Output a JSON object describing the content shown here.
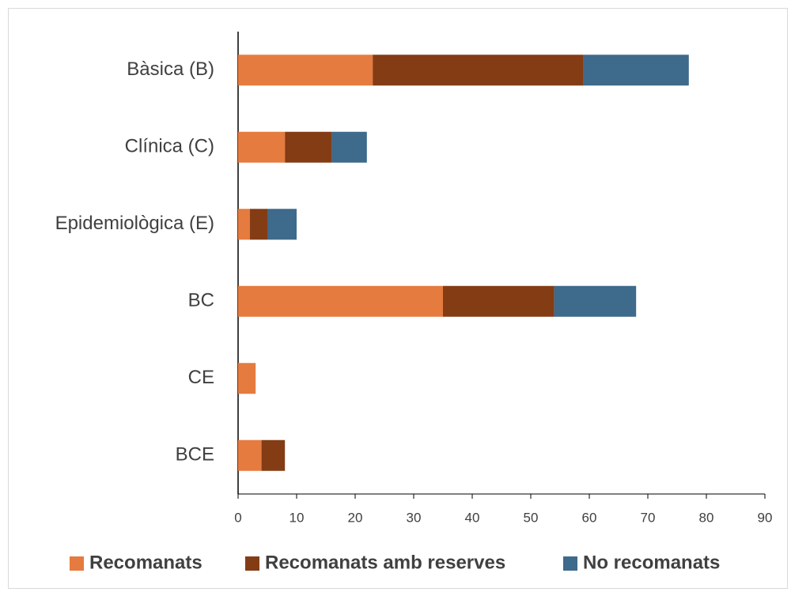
{
  "chart_data": {
    "type": "stacked_bar_horizontal",
    "categories": [
      "Bàsica (B)",
      "Clínica (C)",
      "Epidemiològica (E)",
      "BC",
      "CE",
      "BCE"
    ],
    "series": [
      {
        "name": "Recomanats",
        "color": "#e57b3e",
        "values": [
          23,
          8,
          2,
          35,
          3,
          4
        ]
      },
      {
        "name": "Recomanats amb reserves",
        "color": "#843c15",
        "values": [
          36,
          8,
          3,
          19,
          0,
          4
        ]
      },
      {
        "name": "No recomanats",
        "color": "#3e6a8b",
        "values": [
          18,
          6,
          5,
          14,
          0,
          0
        ]
      }
    ],
    "xlim": [
      0,
      90
    ],
    "xticks": [
      0,
      10,
      20,
      30,
      40,
      50,
      60,
      70,
      80,
      90
    ],
    "legend": "bottom"
  }
}
